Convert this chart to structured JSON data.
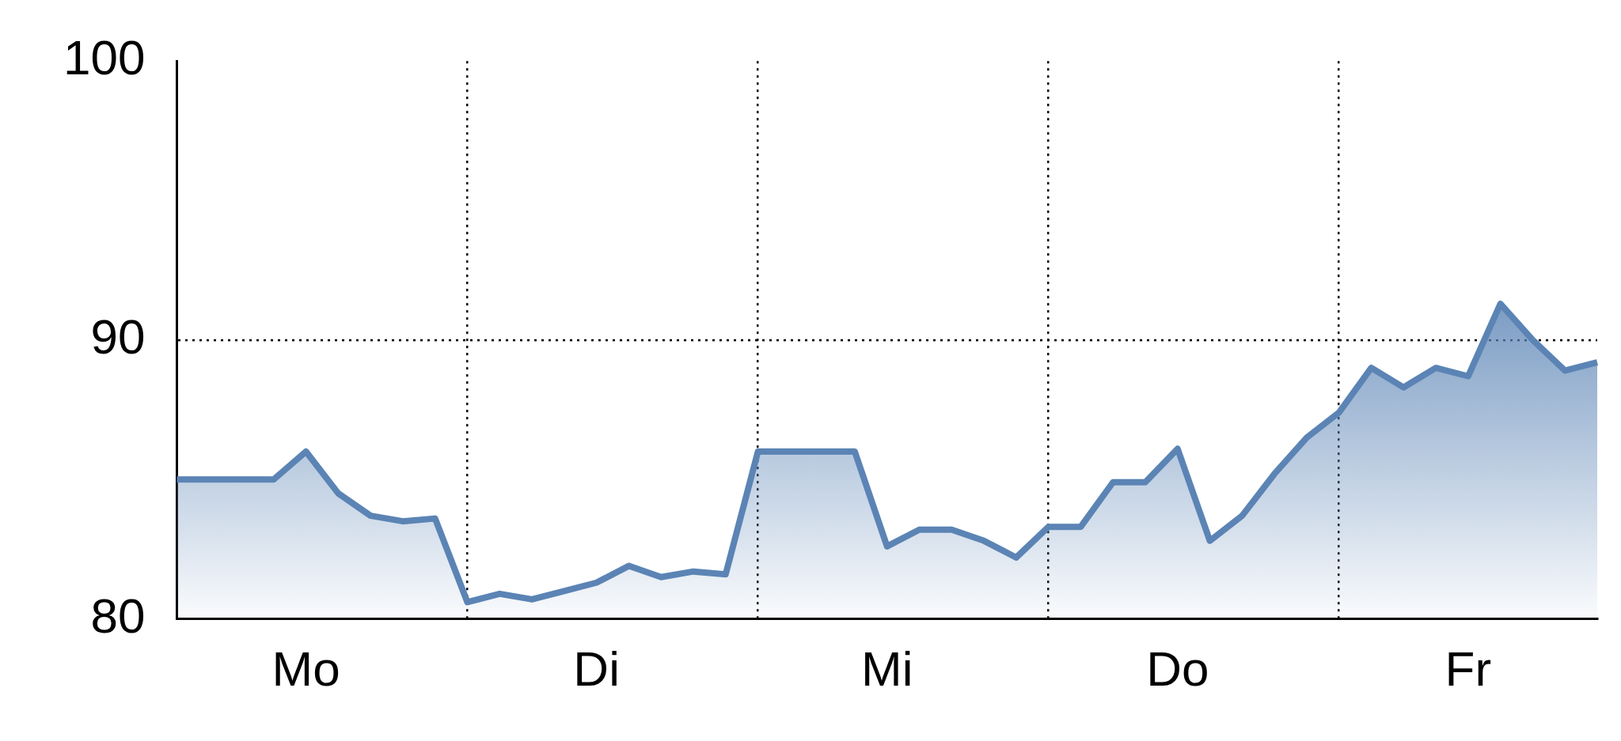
{
  "chart_data": {
    "type": "area",
    "categories": [
      null,
      null,
      null,
      null,
      "Mo",
      null,
      null,
      null,
      null,
      null,
      null,
      null,
      null,
      "Di",
      null,
      null,
      null,
      null,
      null,
      null,
      null,
      null,
      "Mi",
      null,
      null,
      null,
      null,
      null,
      null,
      null,
      null,
      "Do",
      null,
      null,
      null,
      null,
      null,
      null,
      null,
      null,
      "Fr",
      null,
      null,
      null,
      null
    ],
    "series": [
      {
        "color": "#5b84b5",
        "values": [
          85.0,
          85.0,
          85.0,
          85.0,
          86.0,
          84.5,
          83.7,
          83.5,
          83.6,
          80.6,
          80.9,
          80.7,
          81.0,
          81.3,
          81.9,
          81.5,
          81.7,
          81.6,
          86.0,
          86.0,
          86.0,
          86.0,
          82.6,
          83.2,
          83.2,
          82.8,
          82.2,
          83.3,
          83.3,
          84.9,
          84.9,
          86.1,
          82.8,
          83.7,
          85.2,
          86.5,
          87.4,
          89.0,
          88.3,
          89.0,
          88.7,
          91.3,
          90.0,
          88.9,
          89.2
        ]
      }
    ],
    "ylim": [
      80,
      100
    ],
    "yticks": [
      80,
      90,
      100
    ],
    "grid": true,
    "legend": false,
    "marker": "none",
    "line_style": "solid"
  }
}
